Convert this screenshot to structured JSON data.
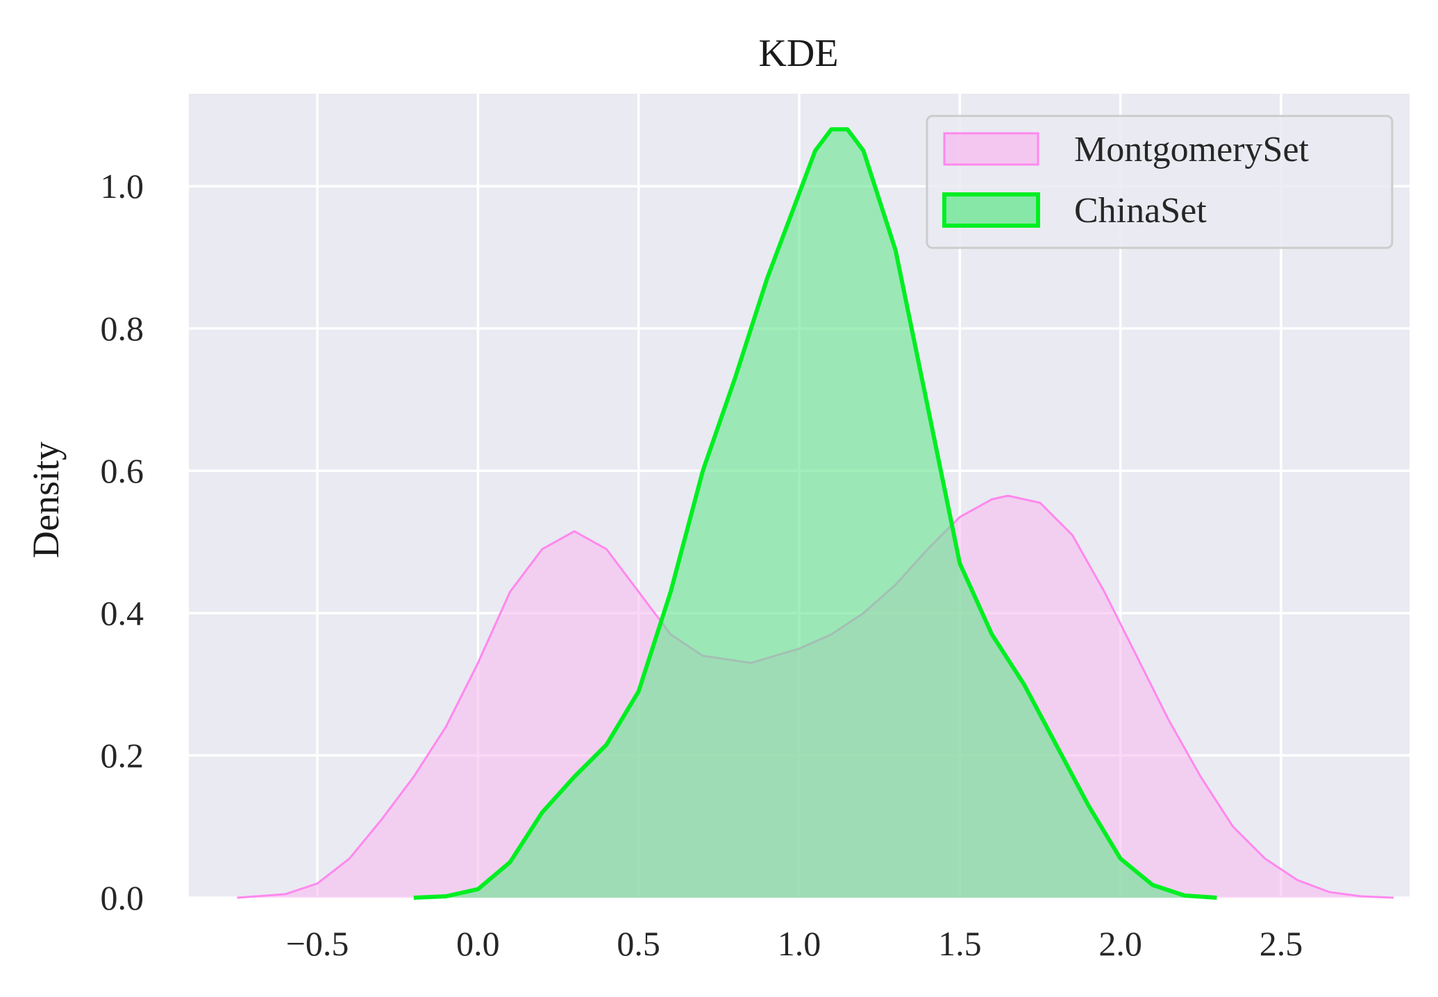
{
  "chart_data": {
    "type": "area",
    "title": "KDE",
    "xlabel": "",
    "ylabel": "Density",
    "xlim": [
      -0.9,
      2.9
    ],
    "ylim": [
      0,
      1.13
    ],
    "xticks": [
      -0.5,
      0.0,
      0.5,
      1.0,
      1.5,
      2.0,
      2.5
    ],
    "xtick_labels": [
      "−0.5",
      "0.0",
      "0.5",
      "1.0",
      "1.5",
      "2.0",
      "2.5"
    ],
    "yticks": [
      0.0,
      0.2,
      0.4,
      0.6,
      0.8,
      1.0
    ],
    "ytick_labels": [
      "0.0",
      "0.2",
      "0.4",
      "0.6",
      "0.8",
      "1.0"
    ],
    "grid": true,
    "legend_position": "top-right",
    "background_color": "#eaeaf2",
    "series": [
      {
        "name": "MontgomerySet",
        "line_color": "#ff88ee",
        "fill_color": "#f7b8ee",
        "fill_opacity": 0.55,
        "points": [
          [
            -0.75,
            0.0
          ],
          [
            -0.6,
            0.005
          ],
          [
            -0.5,
            0.02
          ],
          [
            -0.4,
            0.055
          ],
          [
            -0.3,
            0.11
          ],
          [
            -0.2,
            0.17
          ],
          [
            -0.1,
            0.24
          ],
          [
            0.0,
            0.33
          ],
          [
            0.1,
            0.43
          ],
          [
            0.2,
            0.49
          ],
          [
            0.3,
            0.515
          ],
          [
            0.4,
            0.49
          ],
          [
            0.5,
            0.43
          ],
          [
            0.6,
            0.37
          ],
          [
            0.7,
            0.34
          ],
          [
            0.85,
            0.33
          ],
          [
            1.0,
            0.35
          ],
          [
            1.1,
            0.37
          ],
          [
            1.2,
            0.4
          ],
          [
            1.3,
            0.44
          ],
          [
            1.4,
            0.49
          ],
          [
            1.5,
            0.535
          ],
          [
            1.6,
            0.56
          ],
          [
            1.65,
            0.565
          ],
          [
            1.75,
            0.555
          ],
          [
            1.85,
            0.51
          ],
          [
            1.95,
            0.43
          ],
          [
            2.05,
            0.34
          ],
          [
            2.15,
            0.25
          ],
          [
            2.25,
            0.17
          ],
          [
            2.35,
            0.1
          ],
          [
            2.45,
            0.055
          ],
          [
            2.55,
            0.025
          ],
          [
            2.65,
            0.008
          ],
          [
            2.75,
            0.002
          ],
          [
            2.85,
            0.0
          ]
        ]
      },
      {
        "name": "ChinaSet",
        "line_color": "#00ee22",
        "fill_color": "#66e58e",
        "fill_opacity": 0.6,
        "points": [
          [
            -0.2,
            0.0
          ],
          [
            -0.1,
            0.002
          ],
          [
            0.0,
            0.012
          ],
          [
            0.1,
            0.05
          ],
          [
            0.2,
            0.12
          ],
          [
            0.3,
            0.17
          ],
          [
            0.4,
            0.215
          ],
          [
            0.5,
            0.29
          ],
          [
            0.6,
            0.43
          ],
          [
            0.7,
            0.6
          ],
          [
            0.8,
            0.73
          ],
          [
            0.9,
            0.87
          ],
          [
            1.0,
            0.99
          ],
          [
            1.05,
            1.05
          ],
          [
            1.1,
            1.08
          ],
          [
            1.15,
            1.08
          ],
          [
            1.2,
            1.05
          ],
          [
            1.3,
            0.91
          ],
          [
            1.4,
            0.69
          ],
          [
            1.5,
            0.47
          ],
          [
            1.6,
            0.37
          ],
          [
            1.7,
            0.3
          ],
          [
            1.8,
            0.215
          ],
          [
            1.9,
            0.13
          ],
          [
            2.0,
            0.055
          ],
          [
            2.1,
            0.018
          ],
          [
            2.2,
            0.003
          ],
          [
            2.3,
            0.0
          ]
        ]
      }
    ]
  }
}
